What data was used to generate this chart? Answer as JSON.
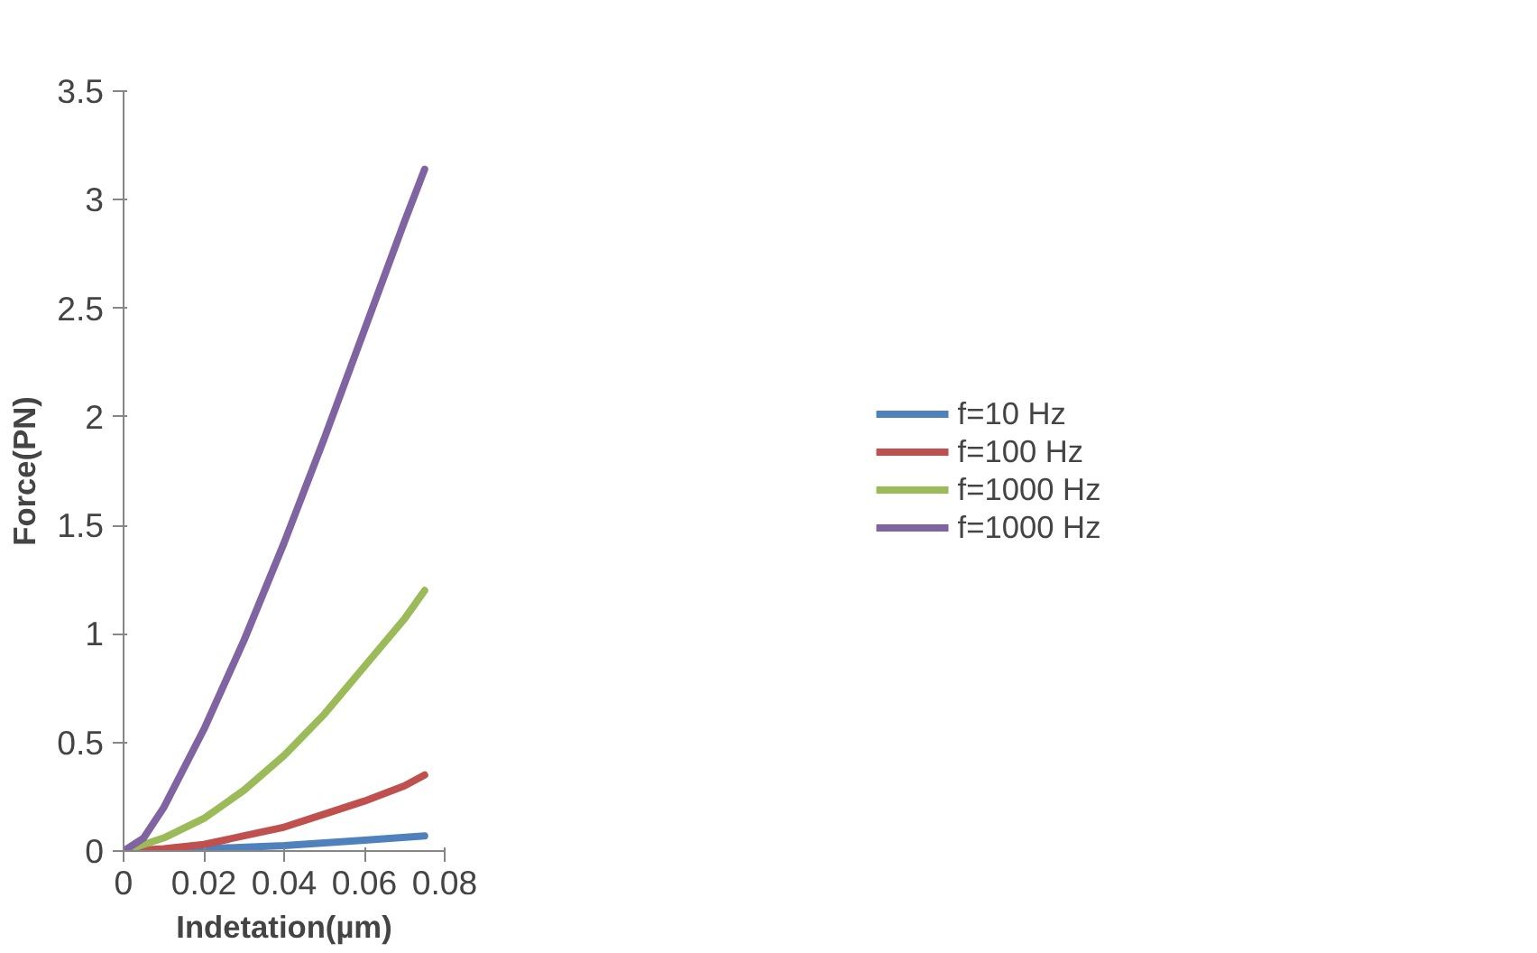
{
  "chart_data": {
    "type": "line",
    "xlabel": "Indetation(µm)",
    "ylabel": "Force(PN)",
    "xlim": [
      0,
      0.08
    ],
    "xticks": [
      0,
      0.02,
      0.04,
      0.06,
      0.08
    ],
    "ylim": [
      0,
      3.5
    ],
    "yticks": [
      0,
      0.5,
      1,
      1.5,
      2,
      2.5,
      3,
      3.5
    ],
    "grid": false,
    "legend": "right",
    "marker": "none",
    "line_style": "solid",
    "series": [
      {
        "name": "f=10 Hz",
        "color": "#4f81bd",
        "x": [
          0,
          0.02,
          0.04,
          0.06,
          0.075
        ],
        "values": [
          0,
          0.01,
          0.025,
          0.05,
          0.07
        ]
      },
      {
        "name": "f=100 Hz",
        "color": "#c0504d",
        "x": [
          0,
          0.01,
          0.02,
          0.03,
          0.04,
          0.05,
          0.06,
          0.07,
          0.075
        ],
        "values": [
          0,
          0.01,
          0.03,
          0.07,
          0.11,
          0.17,
          0.23,
          0.3,
          0.35
        ]
      },
      {
        "name": "f=1000 Hz",
        "color": "#9bbb59",
        "x": [
          0,
          0.01,
          0.02,
          0.03,
          0.04,
          0.05,
          0.06,
          0.07,
          0.075
        ],
        "values": [
          0,
          0.06,
          0.15,
          0.28,
          0.44,
          0.63,
          0.85,
          1.07,
          1.2
        ]
      },
      {
        "name": "f=1000 Hz",
        "color": "#8064a2",
        "x": [
          0,
          0.005,
          0.01,
          0.02,
          0.03,
          0.04,
          0.05,
          0.06,
          0.07,
          0.075
        ],
        "values": [
          0,
          0.06,
          0.2,
          0.56,
          0.97,
          1.42,
          1.9,
          2.4,
          2.9,
          3.14
        ]
      }
    ]
  }
}
